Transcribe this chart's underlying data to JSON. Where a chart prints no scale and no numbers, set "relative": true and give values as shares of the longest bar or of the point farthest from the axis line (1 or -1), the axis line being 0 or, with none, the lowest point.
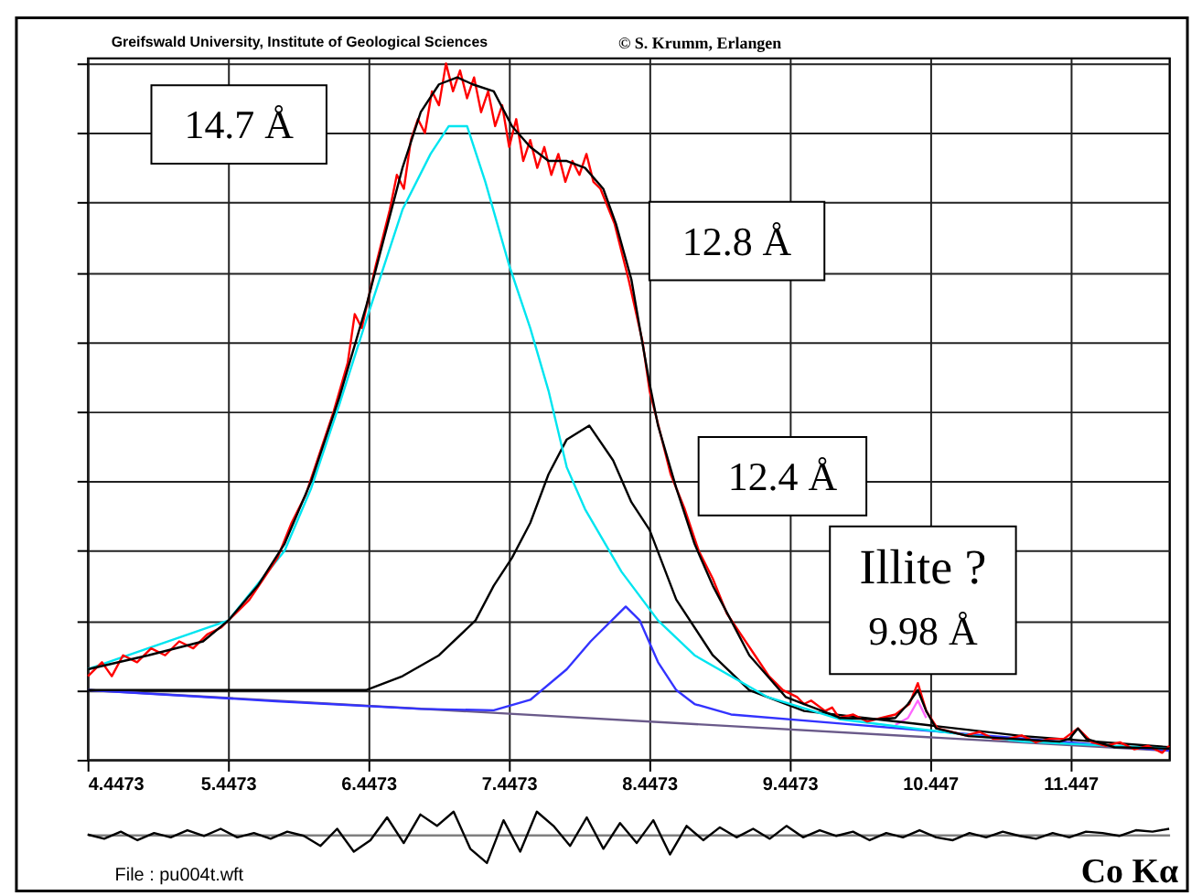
{
  "chart_data": [
    {
      "type": "line",
      "title": "Greifswald University, Institute of Geological Sciences",
      "subtitle": "© S. Krumm, Erlangen",
      "xlim": [
        4.4473,
        12.15
      ],
      "xticks": [
        4.4473,
        5.4473,
        6.4473,
        7.4473,
        8.4473,
        9.4473,
        10.447,
        11.447
      ],
      "relative": true,
      "grid": true,
      "line_style": "solid",
      "annotations": [
        "14.7 Å",
        "12.8 Å",
        "12.4 Å",
        "Illite ?\n9.98 Å"
      ],
      "series": [
        {
          "type": "line",
          "color": "#6a5a8a",
          "x": [
            4.45,
            12.15
          ],
          "values": [
            0.1,
            0.013
          ]
        },
        {
          "type": "line",
          "color": "#ff66ff",
          "x": [
            10.2,
            10.29,
            10.36,
            10.42
          ],
          "values": [
            0.05,
            0.06,
            0.085,
            0.06
          ]
        },
        {
          "type": "line",
          "color": "#3333ff",
          "x": [
            4.45,
            5.79,
            6.82,
            7.34,
            7.6,
            7.86,
            8.03,
            8.28,
            8.38,
            8.51,
            8.64,
            8.77,
            9.03,
            9.81,
            12.15
          ],
          "values": [
            0.1,
            0.084,
            0.073,
            0.071,
            0.086,
            0.13,
            0.17,
            0.22,
            0.2,
            0.14,
            0.1,
            0.08,
            0.065,
            0.052,
            0.013
          ]
        },
        {
          "type": "line",
          "color": "#000000",
          "x": [
            4.45,
            6.43,
            6.69,
            6.95,
            7.21,
            7.34,
            7.47,
            7.6,
            7.73,
            7.86,
            8.02,
            8.19,
            8.32,
            8.45,
            8.64,
            8.9,
            9.16,
            9.55,
            10.07,
            11.11,
            12.15
          ],
          "values": [
            0.1,
            0.1,
            0.12,
            0.15,
            0.2,
            0.25,
            0.29,
            0.34,
            0.41,
            0.46,
            0.48,
            0.43,
            0.37,
            0.33,
            0.23,
            0.15,
            0.1,
            0.07,
            0.058,
            0.034,
            0.018
          ]
        },
        {
          "type": "line",
          "color": "#00e5f0",
          "x": [
            4.45,
            5.45,
            5.85,
            6.04,
            6.24,
            6.43,
            6.69,
            6.89,
            7.02,
            7.15,
            7.28,
            7.45,
            7.6,
            7.73,
            7.86,
            7.99,
            8.25,
            8.51,
            8.77,
            9.29,
            9.81,
            10.33,
            11.11,
            12.15
          ],
          "values": [
            0.13,
            0.2,
            0.3,
            0.39,
            0.51,
            0.63,
            0.79,
            0.87,
            0.91,
            0.91,
            0.83,
            0.71,
            0.62,
            0.53,
            0.42,
            0.36,
            0.27,
            0.2,
            0.15,
            0.09,
            0.058,
            0.045,
            0.026,
            0.016
          ]
        },
        {
          "type": "line",
          "color": "#ff0000",
          "x": [
            4.45,
            4.55,
            4.62,
            4.7,
            4.8,
            4.9,
            5.0,
            5.1,
            5.2,
            5.3,
            5.4,
            5.5,
            5.6,
            5.7,
            5.8,
            5.9,
            6.0,
            6.1,
            6.2,
            6.3,
            6.35,
            6.4,
            6.5,
            6.6,
            6.65,
            6.7,
            6.75,
            6.8,
            6.85,
            6.9,
            6.95,
            7.0,
            7.05,
            7.1,
            7.15,
            7.2,
            7.25,
            7.3,
            7.35,
            7.4,
            7.45,
            7.5,
            7.55,
            7.6,
            7.65,
            7.7,
            7.75,
            7.8,
            7.85,
            7.9,
            7.95,
            8.0,
            8.05,
            8.1,
            8.2,
            8.3,
            8.4,
            8.45,
            8.5,
            8.55,
            8.6,
            8.7,
            8.8,
            8.9,
            9.0,
            9.1,
            9.2,
            9.3,
            9.4,
            9.5,
            9.55,
            9.6,
            9.7,
            9.75,
            9.8,
            9.9,
            10.0,
            10.1,
            10.2,
            10.3,
            10.36,
            10.42,
            10.5,
            10.6,
            10.7,
            10.8,
            10.9,
            11.0,
            11.1,
            11.2,
            11.3,
            11.4,
            11.5,
            11.6,
            11.7,
            11.8,
            11.9,
            12.0,
            12.1,
            12.15
          ],
          "values": [
            0.12,
            0.14,
            0.12,
            0.15,
            0.14,
            0.16,
            0.15,
            0.17,
            0.16,
            0.18,
            0.19,
            0.21,
            0.23,
            0.26,
            0.29,
            0.34,
            0.38,
            0.44,
            0.5,
            0.57,
            0.64,
            0.62,
            0.71,
            0.79,
            0.84,
            0.82,
            0.89,
            0.92,
            0.9,
            0.96,
            0.94,
            1.0,
            0.96,
            0.99,
            0.95,
            0.98,
            0.93,
            0.96,
            0.91,
            0.94,
            0.88,
            0.92,
            0.86,
            0.89,
            0.85,
            0.88,
            0.84,
            0.87,
            0.83,
            0.86,
            0.84,
            0.87,
            0.83,
            0.82,
            0.77,
            0.69,
            0.6,
            0.53,
            0.49,
            0.45,
            0.41,
            0.36,
            0.3,
            0.26,
            0.21,
            0.18,
            0.15,
            0.12,
            0.1,
            0.09,
            0.08,
            0.085,
            0.07,
            0.075,
            0.06,
            0.065,
            0.055,
            0.06,
            0.065,
            0.08,
            0.11,
            0.07,
            0.045,
            0.04,
            0.035,
            0.04,
            0.03,
            0.03,
            0.035,
            0.025,
            0.03,
            0.03,
            0.045,
            0.025,
            0.02,
            0.025,
            0.015,
            0.02,
            0.01,
            0.02
          ]
        },
        {
          "type": "line",
          "color": "#000000",
          "x": [
            4.45,
            4.88,
            5.27,
            5.45,
            5.66,
            5.85,
            6.04,
            6.24,
            6.43,
            6.56,
            6.69,
            6.82,
            6.95,
            7.08,
            7.19,
            7.34,
            7.47,
            7.6,
            7.73,
            7.86,
            7.99,
            8.12,
            8.21,
            8.32,
            8.38,
            8.45,
            8.51,
            8.64,
            8.77,
            8.9,
            9.03,
            9.16,
            9.29,
            9.42,
            9.55,
            9.68,
            9.81,
            10.07,
            10.2,
            10.29,
            10.36,
            10.42,
            10.49,
            10.72,
            11.11,
            11.37,
            11.44,
            11.5,
            11.56,
            11.76,
            12.15
          ],
          "values": [
            0.13,
            0.15,
            0.17,
            0.2,
            0.25,
            0.31,
            0.4,
            0.52,
            0.65,
            0.75,
            0.85,
            0.93,
            0.97,
            0.98,
            0.97,
            0.96,
            0.91,
            0.88,
            0.86,
            0.86,
            0.85,
            0.82,
            0.77,
            0.69,
            0.62,
            0.54,
            0.48,
            0.39,
            0.31,
            0.25,
            0.2,
            0.15,
            0.12,
            0.09,
            0.08,
            0.07,
            0.06,
            0.058,
            0.06,
            0.08,
            0.1,
            0.07,
            0.045,
            0.034,
            0.029,
            0.026,
            0.03,
            0.045,
            0.03,
            0.018,
            0.016
          ]
        }
      ]
    },
    {
      "type": "line",
      "relative": true,
      "line_style": "solid",
      "categories": [
        null,
        null,
        null,
        null,
        null,
        null,
        null,
        null,
        null,
        null,
        null,
        null,
        null,
        null,
        null,
        null,
        null,
        null,
        null,
        null,
        null,
        null,
        null,
        null,
        null,
        null,
        null,
        null,
        null,
        null,
        null,
        null,
        null,
        null,
        null,
        null,
        null,
        null,
        null,
        null,
        null,
        null,
        null,
        null,
        null,
        null,
        null,
        null,
        null,
        null,
        null,
        null,
        null,
        null,
        null,
        null,
        null,
        null,
        null,
        null,
        null,
        null,
        null,
        null,
        null,
        null
      ],
      "annotations": [
        "File : pu004t.wft",
        "Co Kα"
      ],
      "series": [
        {
          "type": "line",
          "color": "#000000",
          "values": [
            0,
            -0.15,
            0.1,
            -0.2,
            0.05,
            -0.1,
            0.15,
            -0.05,
            0.2,
            -0.1,
            0.05,
            -0.15,
            0.1,
            -0.05,
            -0.4,
            0.2,
            -0.6,
            -0.2,
            0.6,
            -0.3,
            0.7,
            0.3,
            0.8,
            -0.5,
            -1.0,
            0.5,
            -0.6,
            0.8,
            0.3,
            -0.4,
            0.6,
            -0.5,
            0.4,
            -0.3,
            0.5,
            -0.7,
            0.3,
            -0.2,
            0.25,
            -0.1,
            0.2,
            -0.15,
            0.3,
            -0.1,
            0.15,
            -0.05,
            0.1,
            -0.2,
            0.05,
            -0.1,
            0.15,
            -0.1,
            -0.2,
            0.05,
            -0.1,
            0.1,
            -0.05,
            -0.15,
            0.05,
            -0.1,
            0.1,
            0.05,
            -0.05,
            0.15,
            0.1,
            0.2
          ]
        }
      ]
    }
  ]
}
